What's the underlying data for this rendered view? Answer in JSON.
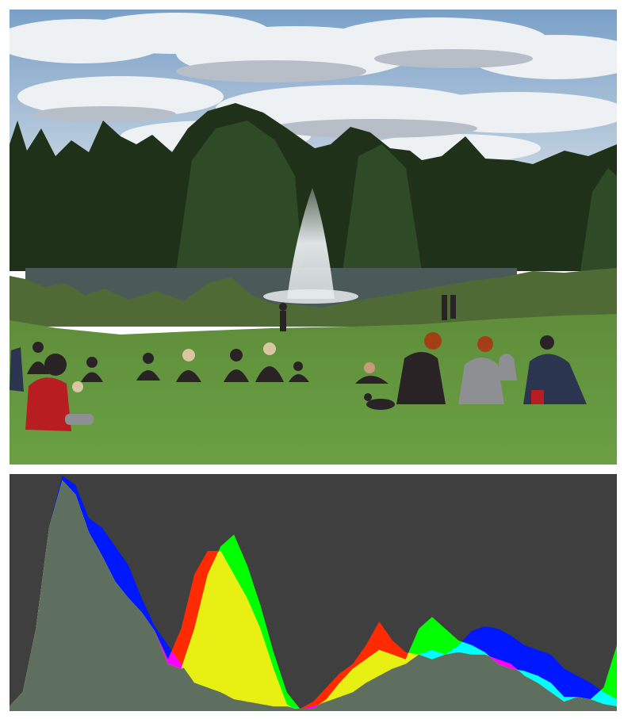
{
  "photo": {
    "description": "",
    "colors": {
      "sky_top": "#7aa0c8",
      "sky_bottom": "#c9d6e2",
      "cloud": "#eef1f3",
      "cloud_shadow": "#b7bec7",
      "trees_dark": "#1f3219",
      "trees_mid": "#2f4a26",
      "pond": "#4a5a58",
      "fountain": "#e8ecef",
      "reeds": "#4f6a35",
      "grass_far": "#5f8d3a",
      "grass_near": "#6aa044",
      "building": "#d9dde0",
      "person_red": "#b81d22",
      "person_dark": "#2a2326",
      "person_grey": "#8d8f92",
      "person_navy": "#2b3550",
      "skin": "#c99a7c",
      "hair_red": "#a33f16",
      "hair_blonde": "#d8c7a1"
    }
  },
  "histogram": {
    "colors": {
      "background": "#3f3f3f",
      "overlap": "#5f6f5f",
      "red": "#ff2a00",
      "green": "#00ff00",
      "blue": "#0018ff",
      "yellow": "#e8ef12",
      "cyan": "#00ffff",
      "magenta": "#ff00ff"
    },
    "channels": {
      "red": [
        [
          0,
          2
        ],
        [
          10,
          8
        ],
        [
          20,
          35
        ],
        [
          30,
          78
        ],
        [
          40,
          98
        ],
        [
          50,
          92
        ],
        [
          60,
          76
        ],
        [
          70,
          66
        ],
        [
          80,
          55
        ],
        [
          90,
          48
        ],
        [
          100,
          42
        ],
        [
          110,
          34
        ],
        [
          120,
          22
        ],
        [
          130,
          35
        ],
        [
          140,
          58
        ],
        [
          150,
          68
        ],
        [
          160,
          68
        ],
        [
          170,
          58
        ],
        [
          180,
          48
        ],
        [
          190,
          35
        ],
        [
          200,
          18
        ],
        [
          210,
          3
        ],
        [
          215,
          1
        ],
        [
          220,
          1
        ],
        [
          230,
          4
        ],
        [
          240,
          10
        ],
        [
          250,
          16
        ],
        [
          260,
          20
        ],
        [
          270,
          28
        ],
        [
          280,
          38
        ],
        [
          290,
          30
        ],
        [
          300,
          25
        ],
        [
          310,
          24
        ],
        [
          320,
          22
        ],
        [
          330,
          24
        ],
        [
          340,
          25
        ],
        [
          350,
          24
        ],
        [
          360,
          24
        ],
        [
          370,
          22
        ],
        [
          380,
          20
        ],
        [
          390,
          15
        ],
        [
          400,
          12
        ],
        [
          410,
          8
        ],
        [
          420,
          4
        ],
        [
          430,
          6
        ],
        [
          440,
          5
        ],
        [
          450,
          3
        ],
        [
          460,
          2
        ]
      ],
      "green": [
        [
          0,
          2
        ],
        [
          10,
          8
        ],
        [
          20,
          35
        ],
        [
          30,
          78
        ],
        [
          40,
          98
        ],
        [
          50,
          92
        ],
        [
          60,
          76
        ],
        [
          70,
          66
        ],
        [
          80,
          55
        ],
        [
          90,
          48
        ],
        [
          100,
          42
        ],
        [
          110,
          34
        ],
        [
          120,
          20
        ],
        [
          130,
          18
        ],
        [
          140,
          35
        ],
        [
          150,
          58
        ],
        [
          160,
          70
        ],
        [
          170,
          75
        ],
        [
          180,
          62
        ],
        [
          190,
          45
        ],
        [
          200,
          25
        ],
        [
          210,
          8
        ],
        [
          220,
          1
        ],
        [
          230,
          1
        ],
        [
          240,
          5
        ],
        [
          250,
          12
        ],
        [
          260,
          18
        ],
        [
          270,
          22
        ],
        [
          280,
          26
        ],
        [
          290,
          24
        ],
        [
          300,
          22
        ],
        [
          310,
          35
        ],
        [
          320,
          40
        ],
        [
          330,
          35
        ],
        [
          340,
          30
        ],
        [
          350,
          28
        ],
        [
          360,
          25
        ],
        [
          370,
          20
        ],
        [
          380,
          18
        ],
        [
          390,
          17
        ],
        [
          400,
          15
        ],
        [
          410,
          12
        ],
        [
          420,
          6
        ],
        [
          430,
          6
        ],
        [
          440,
          5
        ],
        [
          450,
          10
        ],
        [
          460,
          28
        ]
      ],
      "blue": [
        [
          0,
          2
        ],
        [
          10,
          8
        ],
        [
          20,
          35
        ],
        [
          30,
          78
        ],
        [
          40,
          100
        ],
        [
          50,
          96
        ],
        [
          60,
          82
        ],
        [
          70,
          78
        ],
        [
          80,
          70
        ],
        [
          90,
          62
        ],
        [
          100,
          48
        ],
        [
          110,
          36
        ],
        [
          120,
          28
        ],
        [
          130,
          20
        ],
        [
          140,
          12
        ],
        [
          150,
          10
        ],
        [
          160,
          8
        ],
        [
          170,
          5
        ],
        [
          180,
          4
        ],
        [
          190,
          3
        ],
        [
          200,
          2
        ],
        [
          210,
          2
        ],
        [
          220,
          1
        ],
        [
          230,
          2
        ],
        [
          240,
          4
        ],
        [
          250,
          6
        ],
        [
          260,
          8
        ],
        [
          270,
          12
        ],
        [
          280,
          15
        ],
        [
          290,
          18
        ],
        [
          300,
          20
        ],
        [
          310,
          24
        ],
        [
          320,
          26
        ],
        [
          330,
          24
        ],
        [
          340,
          28
        ],
        [
          350,
          34
        ],
        [
          360,
          36
        ],
        [
          370,
          35
        ],
        [
          380,
          32
        ],
        [
          390,
          28
        ],
        [
          400,
          26
        ],
        [
          410,
          24
        ],
        [
          420,
          18
        ],
        [
          430,
          15
        ],
        [
          440,
          12
        ],
        [
          450,
          8
        ],
        [
          460,
          5
        ]
      ]
    }
  }
}
